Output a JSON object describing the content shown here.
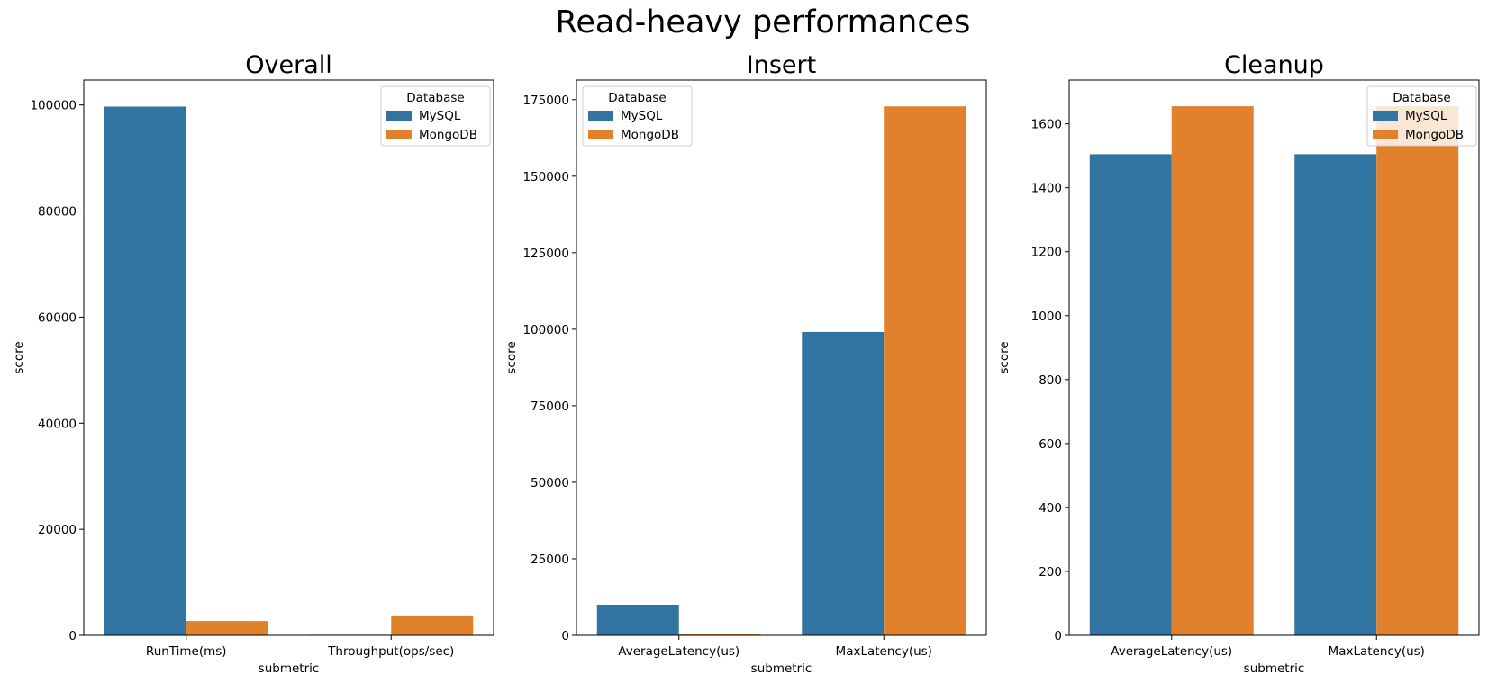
{
  "figure": {
    "title": "Read-heavy performances"
  },
  "chart_data": [
    {
      "type": "bar",
      "title": "Overall",
      "xlabel": "submetric",
      "ylabel": "score",
      "categories": [
        "RunTime(ms)",
        "Throughput(ops/sec)"
      ],
      "series": [
        {
          "name": "MySQL",
          "color": "#3274a1",
          "values": [
            99700,
            100
          ]
        },
        {
          "name": "MongoDB",
          "color": "#e1812c",
          "values": [
            2700,
            3750
          ]
        }
      ],
      "ylim": [
        0,
        104700
      ],
      "yticks": [
        0,
        20000,
        40000,
        60000,
        80000,
        100000
      ],
      "legend": {
        "title": "Database",
        "placement": "upper right"
      }
    },
    {
      "type": "bar",
      "title": "Insert",
      "xlabel": "submetric",
      "ylabel": "score",
      "categories": [
        "AverageLatency(us)",
        "MaxLatency(us)"
      ],
      "series": [
        {
          "name": "MySQL",
          "color": "#3274a1",
          "values": [
            10000,
            99100
          ]
        },
        {
          "name": "MongoDB",
          "color": "#e1812c",
          "values": [
            350,
            172800
          ]
        }
      ],
      "ylim": [
        0,
        181400
      ],
      "yticks": [
        0,
        25000,
        50000,
        75000,
        100000,
        125000,
        150000,
        175000
      ],
      "legend": {
        "title": "Database",
        "placement": "upper left"
      }
    },
    {
      "type": "bar",
      "title": "Cleanup",
      "xlabel": "submetric",
      "ylabel": "score",
      "categories": [
        "AverageLatency(us)",
        "MaxLatency(us)"
      ],
      "series": [
        {
          "name": "MySQL",
          "color": "#3274a1",
          "values": [
            1505,
            1505
          ]
        },
        {
          "name": "MongoDB",
          "color": "#e1812c",
          "values": [
            1655,
            1655
          ]
        }
      ],
      "ylim": [
        0,
        1737
      ],
      "yticks": [
        0,
        200,
        400,
        600,
        800,
        1000,
        1200,
        1400,
        1600
      ],
      "legend": {
        "title": "Database",
        "placement": "upper right"
      }
    }
  ]
}
